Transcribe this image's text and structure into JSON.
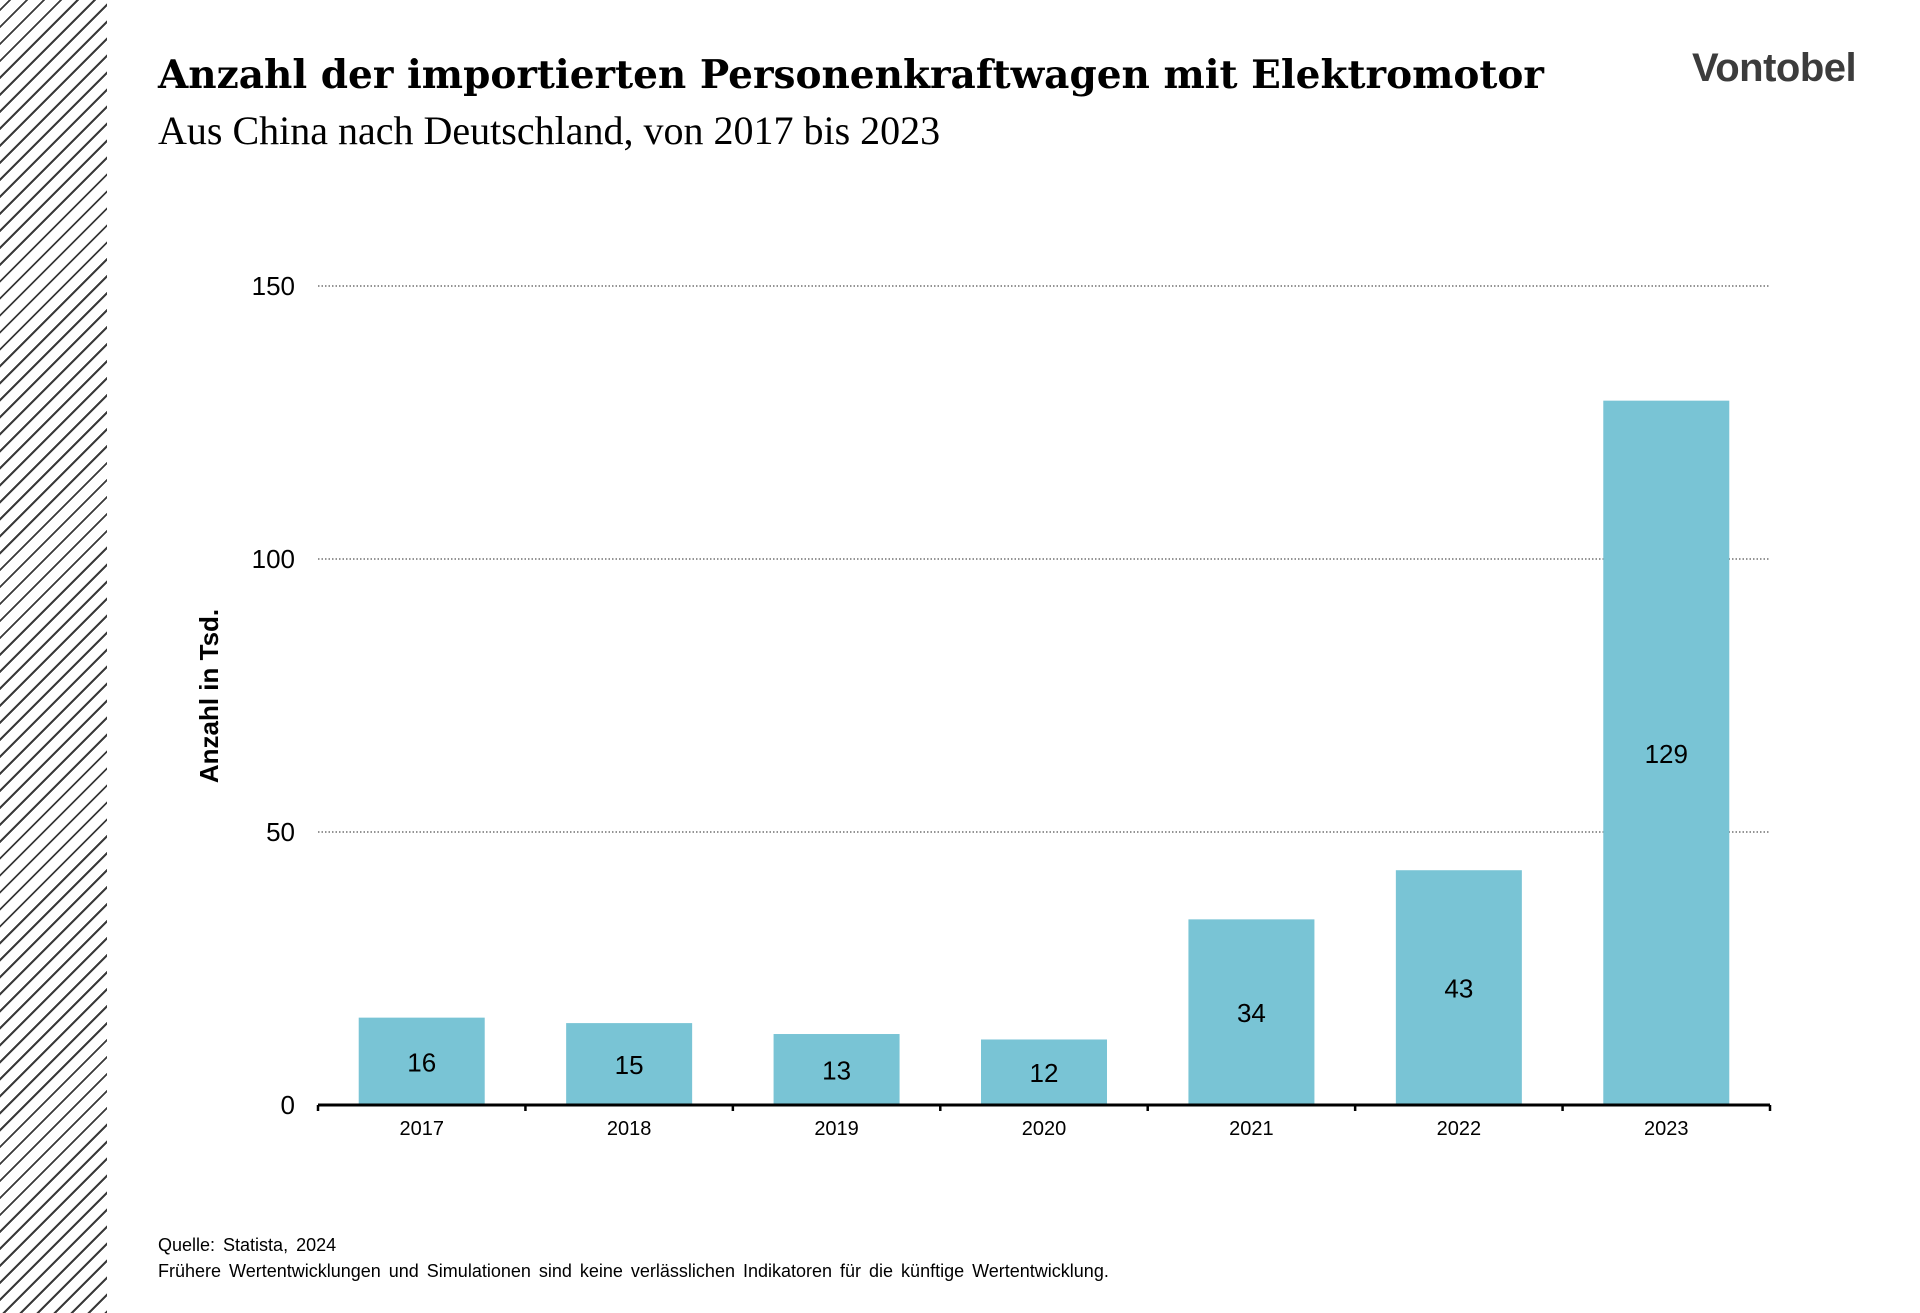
{
  "header": {
    "title": "Anzahl der importierten Personenkraftwagen mit Elektromotor",
    "subtitle": "Aus China nach Deutschland, von 2017 bis 2023",
    "logo": "Vontobel"
  },
  "chart_data": {
    "type": "bar",
    "categories": [
      "2017",
      "2018",
      "2019",
      "2020",
      "2021",
      "2022",
      "2023"
    ],
    "values": [
      16,
      15,
      13,
      12,
      34,
      43,
      129
    ],
    "data_labels": [
      "16",
      "15",
      "13",
      "12",
      "34",
      "43",
      "129"
    ],
    "title": "Anzahl der importierten Personenkraftwagen mit Elektromotor",
    "subtitle": "Aus China nach Deutschland, von 2017 bis 2023",
    "xlabel": "",
    "ylabel": "Anzahl in Tsd.",
    "ylim": [
      0,
      150
    ],
    "yticks": [
      0,
      50,
      100,
      150
    ],
    "grid": "horizontal dotted",
    "bar_color": "#79c4d5",
    "legend": "none"
  },
  "footer": {
    "source": "Quelle: Statista, 2024",
    "disclaimer": "Frühere Wertentwicklungen und Simulationen sind keine verlässlichen Indikatoren für die künftige Wertentwicklung."
  }
}
